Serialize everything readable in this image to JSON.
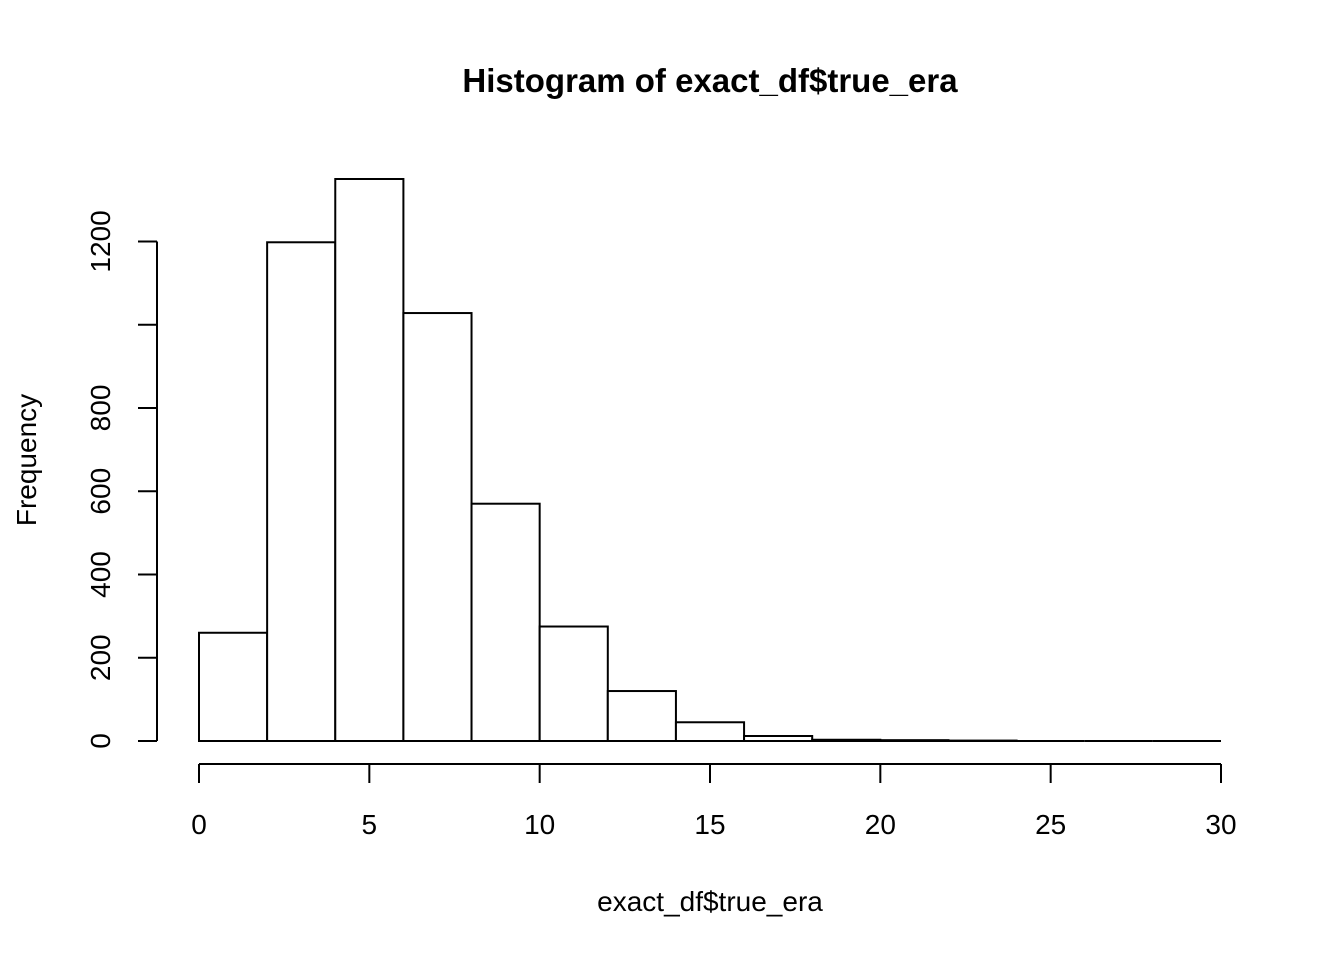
{
  "chart_data": {
    "type": "bar",
    "title": "Histogram of exact_df$true_era",
    "xlabel": "exact_df$true_era",
    "ylabel": "Frequency",
    "xlim": [
      0,
      30
    ],
    "ylim": [
      0,
      1350
    ],
    "x_ticks": [
      0,
      5,
      10,
      15,
      20,
      25,
      30
    ],
    "y_ticks": [
      0,
      200,
      400,
      600,
      800,
      1000,
      1200
    ],
    "y_tick_labels": [
      "0",
      "200",
      "400",
      "600",
      "800",
      "",
      "1200"
    ],
    "bin_width": 2,
    "bins": [
      {
        "start": 0,
        "end": 2,
        "count": 260
      },
      {
        "start": 2,
        "end": 4,
        "count": 1198
      },
      {
        "start": 4,
        "end": 6,
        "count": 1350
      },
      {
        "start": 6,
        "end": 8,
        "count": 1028
      },
      {
        "start": 8,
        "end": 10,
        "count": 570
      },
      {
        "start": 10,
        "end": 12,
        "count": 275
      },
      {
        "start": 12,
        "end": 14,
        "count": 120
      },
      {
        "start": 14,
        "end": 16,
        "count": 45
      },
      {
        "start": 16,
        "end": 18,
        "count": 12
      },
      {
        "start": 18,
        "end": 20,
        "count": 3
      },
      {
        "start": 20,
        "end": 22,
        "count": 2
      },
      {
        "start": 22,
        "end": 24,
        "count": 1
      },
      {
        "start": 24,
        "end": 26,
        "count": 0
      },
      {
        "start": 26,
        "end": 28,
        "count": 0
      },
      {
        "start": 28,
        "end": 30,
        "count": 0
      }
    ],
    "grid": false,
    "legend": "none"
  }
}
